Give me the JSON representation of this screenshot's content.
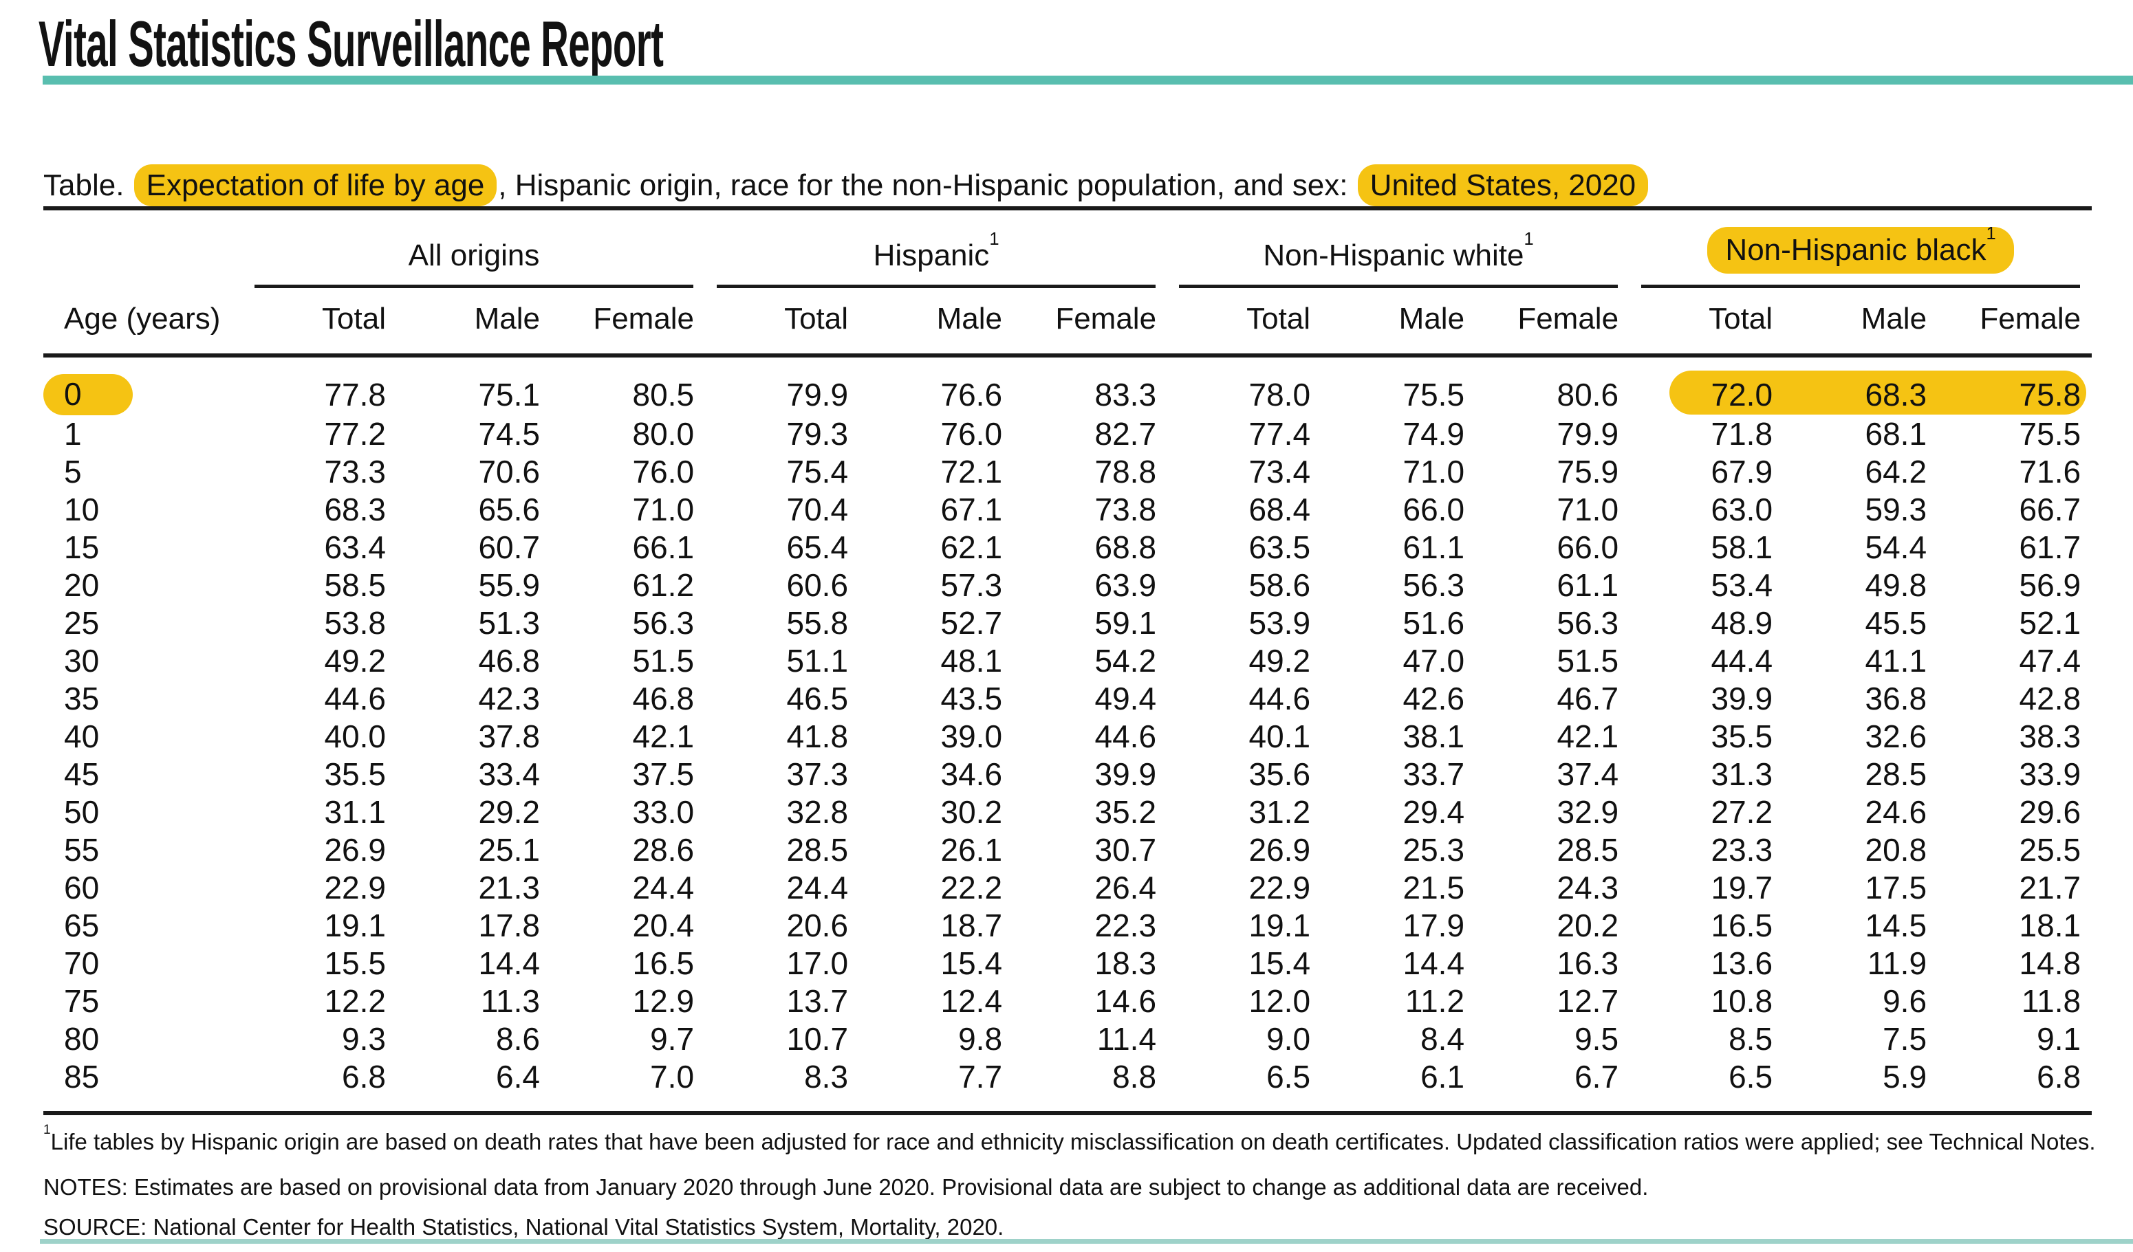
{
  "report_title": "Vital Statistics Surveillance Report",
  "caption": {
    "prefix": "Table. ",
    "highlight_1": "Expectation of life by age",
    "middle": ", Hispanic origin, race for the non-Hispanic population, and sex: ",
    "highlight_2": "United States, 2020"
  },
  "colors": {
    "accent_teal": "#59beaf",
    "highlight_gold": "#f5c313",
    "rule_dark": "#1a1a1a"
  },
  "table": {
    "age_header": "Age (years)",
    "groups": [
      {
        "label": "All origins",
        "sup": "",
        "cols": [
          "Total",
          "Male",
          "Female"
        ]
      },
      {
        "label": "Hispanic",
        "sup": "1",
        "cols": [
          "Total",
          "Male",
          "Female"
        ]
      },
      {
        "label": "Non-Hispanic white",
        "sup": "1",
        "cols": [
          "Total",
          "Male",
          "Female"
        ]
      },
      {
        "label": "Non-Hispanic black",
        "sup": "1",
        "highlighted": true,
        "cols": [
          "Total",
          "Male",
          "Female"
        ]
      }
    ],
    "rows": [
      {
        "age": "0",
        "highlight_age": true,
        "highlight_cells": [
          9,
          10,
          11
        ],
        "values": [
          "77.8",
          "75.1",
          "80.5",
          "79.9",
          "76.6",
          "83.3",
          "78.0",
          "75.5",
          "80.6",
          "72.0",
          "68.3",
          "75.8"
        ]
      },
      {
        "age": "1",
        "values": [
          "77.2",
          "74.5",
          "80.0",
          "79.3",
          "76.0",
          "82.7",
          "77.4",
          "74.9",
          "79.9",
          "71.8",
          "68.1",
          "75.5"
        ]
      },
      {
        "age": "5",
        "values": [
          "73.3",
          "70.6",
          "76.0",
          "75.4",
          "72.1",
          "78.8",
          "73.4",
          "71.0",
          "75.9",
          "67.9",
          "64.2",
          "71.6"
        ]
      },
      {
        "age": "10",
        "values": [
          "68.3",
          "65.6",
          "71.0",
          "70.4",
          "67.1",
          "73.8",
          "68.4",
          "66.0",
          "71.0",
          "63.0",
          "59.3",
          "66.7"
        ]
      },
      {
        "age": "15",
        "values": [
          "63.4",
          "60.7",
          "66.1",
          "65.4",
          "62.1",
          "68.8",
          "63.5",
          "61.1",
          "66.0",
          "58.1",
          "54.4",
          "61.7"
        ]
      },
      {
        "age": "20",
        "values": [
          "58.5",
          "55.9",
          "61.2",
          "60.6",
          "57.3",
          "63.9",
          "58.6",
          "56.3",
          "61.1",
          "53.4",
          "49.8",
          "56.9"
        ]
      },
      {
        "age": "25",
        "values": [
          "53.8",
          "51.3",
          "56.3",
          "55.8",
          "52.7",
          "59.1",
          "53.9",
          "51.6",
          "56.3",
          "48.9",
          "45.5",
          "52.1"
        ]
      },
      {
        "age": "30",
        "values": [
          "49.2",
          "46.8",
          "51.5",
          "51.1",
          "48.1",
          "54.2",
          "49.2",
          "47.0",
          "51.5",
          "44.4",
          "41.1",
          "47.4"
        ]
      },
      {
        "age": "35",
        "values": [
          "44.6",
          "42.3",
          "46.8",
          "46.5",
          "43.5",
          "49.4",
          "44.6",
          "42.6",
          "46.7",
          "39.9",
          "36.8",
          "42.8"
        ]
      },
      {
        "age": "40",
        "values": [
          "40.0",
          "37.8",
          "42.1",
          "41.8",
          "39.0",
          "44.6",
          "40.1",
          "38.1",
          "42.1",
          "35.5",
          "32.6",
          "38.3"
        ]
      },
      {
        "age": "45",
        "values": [
          "35.5",
          "33.4",
          "37.5",
          "37.3",
          "34.6",
          "39.9",
          "35.6",
          "33.7",
          "37.4",
          "31.3",
          "28.5",
          "33.9"
        ]
      },
      {
        "age": "50",
        "values": [
          "31.1",
          "29.2",
          "33.0",
          "32.8",
          "30.2",
          "35.2",
          "31.2",
          "29.4",
          "32.9",
          "27.2",
          "24.6",
          "29.6"
        ]
      },
      {
        "age": "55",
        "values": [
          "26.9",
          "25.1",
          "28.6",
          "28.5",
          "26.1",
          "30.7",
          "26.9",
          "25.3",
          "28.5",
          "23.3",
          "20.8",
          "25.5"
        ]
      },
      {
        "age": "60",
        "values": [
          "22.9",
          "21.3",
          "24.4",
          "24.4",
          "22.2",
          "26.4",
          "22.9",
          "21.5",
          "24.3",
          "19.7",
          "17.5",
          "21.7"
        ]
      },
      {
        "age": "65",
        "values": [
          "19.1",
          "17.8",
          "20.4",
          "20.6",
          "18.7",
          "22.3",
          "19.1",
          "17.9",
          "20.2",
          "16.5",
          "14.5",
          "18.1"
        ]
      },
      {
        "age": "70",
        "values": [
          "15.5",
          "14.4",
          "16.5",
          "17.0",
          "15.4",
          "18.3",
          "15.4",
          "14.4",
          "16.3",
          "13.6",
          "11.9",
          "14.8"
        ]
      },
      {
        "age": "75",
        "values": [
          "12.2",
          "11.3",
          "12.9",
          "13.7",
          "12.4",
          "14.6",
          "12.0",
          "11.2",
          "12.7",
          "10.8",
          "9.6",
          "11.8"
        ]
      },
      {
        "age": "80",
        "values": [
          "9.3",
          "8.6",
          "9.7",
          "10.7",
          "9.8",
          "11.4",
          "9.0",
          "8.4",
          "9.5",
          "8.5",
          "7.5",
          "9.1"
        ]
      },
      {
        "age": "85",
        "values": [
          "6.8",
          "6.4",
          "7.0",
          "8.3",
          "7.7",
          "8.8",
          "6.5",
          "6.1",
          "6.7",
          "6.5",
          "5.9",
          "6.8"
        ]
      }
    ]
  },
  "footnotes": {
    "footnote_sup": "1",
    "footnote_1": "Life tables by Hispanic origin are based on death rates that have been adjusted for race and ethnicity misclassification on death certificates. Updated classification ratios were applied; see Technical Notes.",
    "notes": "NOTES: Estimates are based on provisional data from January 2020 through June 2020. Provisional data are subject to change as additional data are received.",
    "source": "SOURCE: National Center for Health Statistics, National Vital Statistics System, Mortality, 2020."
  }
}
